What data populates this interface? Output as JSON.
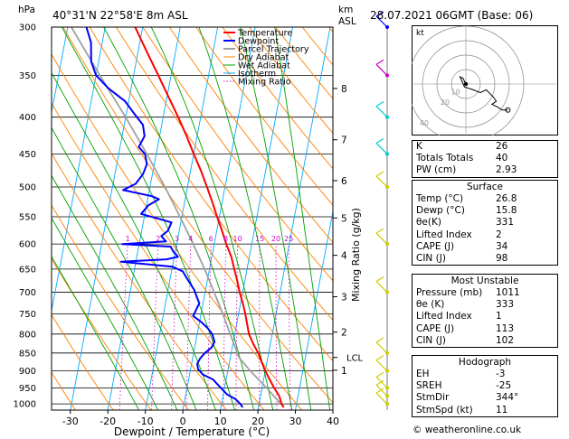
{
  "header": {
    "hpa_label": "hPa",
    "location": "40°31'N  22°58'E  8m  ASL",
    "km_label": "km",
    "asl_label": "ASL",
    "datetime": "28.07.2021  06GMT  (Base: 06)"
  },
  "colors": {
    "temperature": "#ff0000",
    "dewpoint": "#0000ff",
    "parcel": "#a0a0a0",
    "dry_adiabat": "#ff8000",
    "wet_adiabat": "#00a000",
    "isotherm": "#00aaff",
    "mixing_ratio": "#cc00cc"
  },
  "chart_data": {
    "type": "line",
    "xlabel": "Dewpoint / Temperature (°C)",
    "ylabel": "Mixing Ratio (g/kg)",
    "xlim": [
      -35,
      40
    ],
    "ylim": [
      1000,
      300
    ],
    "pressure_levels": [
      "300",
      "350",
      "400",
      "450",
      "500",
      "550",
      "600",
      "650",
      "700",
      "750",
      "800",
      "850",
      "900",
      "950",
      "1000"
    ],
    "temp_ticks": [
      "-30",
      "-20",
      "-10",
      "0",
      "10",
      "20",
      "30",
      "40"
    ],
    "km_ticks": [
      {
        "label": "8",
        "p": 365
      },
      {
        "label": "7",
        "p": 430
      },
      {
        "label": "6",
        "p": 490
      },
      {
        "label": "5",
        "p": 552
      },
      {
        "label": "4",
        "p": 622
      },
      {
        "label": "3",
        "p": 710
      },
      {
        "label": "2",
        "p": 795
      },
      {
        "label": "1",
        "p": 898
      }
    ],
    "lcl": {
      "label": "LCL",
      "p": 862
    },
    "mixing_ratio_labels": [
      "1",
      "2",
      "3",
      "4",
      "6",
      "8",
      "10",
      "15",
      "20",
      "25"
    ],
    "mixing_ratio_values": [
      1,
      2,
      3,
      4,
      6,
      8,
      10,
      15,
      20,
      25
    ],
    "legend": [
      "Temperature",
      "Dewpoint",
      "Parcel Trajectory",
      "Dry Adiabat",
      "Wet Adiabat",
      "Isotherm",
      "Mixing Ratio"
    ],
    "legend_position": "top-right",
    "series": [
      {
        "name": "Temperature",
        "points": [
          [
            1011,
            26.8
          ],
          [
            1000,
            26.0
          ],
          [
            975,
            25.0
          ],
          [
            950,
            23.2
          ],
          [
            925,
            21.6
          ],
          [
            900,
            20.0
          ],
          [
            875,
            18.6
          ],
          [
            850,
            17.2
          ],
          [
            825,
            15.4
          ],
          [
            800,
            13.8
          ],
          [
            775,
            12.8
          ],
          [
            750,
            11.8
          ],
          [
            725,
            10.6
          ],
          [
            700,
            9.2
          ],
          [
            675,
            8.0
          ],
          [
            650,
            6.6
          ],
          [
            625,
            5.2
          ],
          [
            600,
            3.2
          ],
          [
            575,
            1.4
          ],
          [
            550,
            -0.6
          ],
          [
            525,
            -2.6
          ],
          [
            500,
            -4.8
          ],
          [
            475,
            -7.2
          ],
          [
            450,
            -10.0
          ],
          [
            425,
            -12.8
          ],
          [
            400,
            -16.0
          ],
          [
            375,
            -19.6
          ],
          [
            350,
            -23.4
          ],
          [
            325,
            -27.6
          ],
          [
            300,
            -32.0
          ]
        ]
      },
      {
        "name": "Dewpoint",
        "points": [
          [
            1011,
            15.8
          ],
          [
            1000,
            15.0
          ],
          [
            985,
            13.5
          ],
          [
            970,
            11.0
          ],
          [
            955,
            9.5
          ],
          [
            940,
            8.0
          ],
          [
            925,
            6.5
          ],
          [
            910,
            3.5
          ],
          [
            895,
            2.0
          ],
          [
            880,
            1.5
          ],
          [
            865,
            2.0
          ],
          [
            850,
            3.0
          ],
          [
            835,
            4.5
          ],
          [
            820,
            5.0
          ],
          [
            800,
            4.0
          ],
          [
            785,
            2.5
          ],
          [
            770,
            0.5
          ],
          [
            755,
            -2.0
          ],
          [
            740,
            -1.5
          ],
          [
            725,
            -1.0
          ],
          [
            710,
            -2.0
          ],
          [
            695,
            -3.0
          ],
          [
            680,
            -4.5
          ],
          [
            665,
            -6.0
          ],
          [
            655,
            -7.0
          ],
          [
            645,
            -10.0
          ],
          [
            635,
            -24.0
          ],
          [
            630,
            -12.0
          ],
          [
            625,
            -9.0
          ],
          [
            615,
            -10.5
          ],
          [
            605,
            -11.5
          ],
          [
            600,
            -24.5
          ],
          [
            595,
            -13.0
          ],
          [
            585,
            -14.5
          ],
          [
            575,
            -13.0
          ],
          [
            560,
            -12.5
          ],
          [
            545,
            -21.0
          ],
          [
            530,
            -19.5
          ],
          [
            520,
            -17.0
          ],
          [
            515,
            -19.0
          ],
          [
            505,
            -27.0
          ],
          [
            495,
            -24.0
          ],
          [
            480,
            -22.5
          ],
          [
            465,
            -22.0
          ],
          [
            450,
            -23.0
          ],
          [
            440,
            -25.0
          ],
          [
            425,
            -24.0
          ],
          [
            410,
            -25.0
          ],
          [
            395,
            -28.0
          ],
          [
            380,
            -31.0
          ],
          [
            365,
            -36.0
          ],
          [
            350,
            -40.0
          ],
          [
            335,
            -42.0
          ],
          [
            315,
            -43.0
          ],
          [
            300,
            -45.0
          ]
        ]
      },
      {
        "name": "Parcel Trajectory",
        "points": [
          [
            1011,
            26.8
          ],
          [
            950,
            21.2
          ],
          [
            900,
            16.0
          ],
          [
            862,
            12.3
          ],
          [
            850,
            11.6
          ],
          [
            800,
            8.8
          ],
          [
            750,
            5.8
          ],
          [
            700,
            2.4
          ],
          [
            650,
            -1.3
          ],
          [
            600,
            -5.6
          ],
          [
            550,
            -10.5
          ],
          [
            500,
            -16.0
          ],
          [
            450,
            -22.5
          ],
          [
            400,
            -30.0
          ],
          [
            350,
            -39.0
          ],
          [
            300,
            -49.0
          ]
        ]
      }
    ]
  },
  "hodograph": {
    "label": "kt",
    "ring_labels": [
      "10",
      "20",
      "40"
    ],
    "trace": [
      [
        0,
        0
      ],
      [
        -2,
        4
      ],
      [
        -4,
        5
      ],
      [
        -1,
        -2
      ],
      [
        5,
        -4
      ],
      [
        10,
        -6
      ],
      [
        14,
        -4
      ],
      [
        17,
        -7
      ],
      [
        19,
        -9
      ],
      [
        21,
        -12
      ],
      [
        18,
        -14
      ],
      [
        22,
        -16
      ],
      [
        25,
        -18
      ],
      [
        29,
        -18
      ]
    ],
    "storm_motion": [
      [
        29,
        -18
      ]
    ]
  },
  "wind_barbs": [
    {
      "p": 1000,
      "color": "#cccc00"
    },
    {
      "p": 975,
      "color": "#cccc00"
    },
    {
      "p": 950,
      "color": "#cccc00"
    },
    {
      "p": 900,
      "color": "#cccc00"
    },
    {
      "p": 850,
      "color": "#cccc00"
    },
    {
      "p": 700,
      "color": "#cccc00"
    },
    {
      "p": 600,
      "color": "#cccc00"
    },
    {
      "p": 500,
      "color": "#cccc00"
    },
    {
      "p": 450,
      "color": "#00cccc"
    },
    {
      "p": 400,
      "color": "#00cccc"
    },
    {
      "p": 350,
      "color": "#cc00cc"
    },
    {
      "p": 300,
      "color": "#0000ff"
    }
  ],
  "indices": {
    "rows": [
      {
        "label": "K",
        "value": "26"
      },
      {
        "label": "Totals Totals",
        "value": "40"
      },
      {
        "label": "PW (cm)",
        "value": "2.93"
      }
    ]
  },
  "surface": {
    "title": "Surface",
    "rows": [
      {
        "label": "Temp (°C)",
        "value": "26.8"
      },
      {
        "label": "Dewp (°C)",
        "value": "15.8"
      },
      {
        "label": "θe(K)",
        "value": "331"
      },
      {
        "label": "Lifted Index",
        "value": "2"
      },
      {
        "label": "CAPE (J)",
        "value": "34"
      },
      {
        "label": "CIN (J)",
        "value": "98"
      }
    ]
  },
  "most_unstable": {
    "title": "Most Unstable",
    "rows": [
      {
        "label": "Pressure (mb)",
        "value": "1011"
      },
      {
        "label": "θe (K)",
        "value": "333"
      },
      {
        "label": "Lifted Index",
        "value": "1"
      },
      {
        "label": "CAPE (J)",
        "value": "113"
      },
      {
        "label": "CIN (J)",
        "value": "102"
      }
    ]
  },
  "hodograph_table": {
    "title": "Hodograph",
    "rows": [
      {
        "label": "EH",
        "value": "-3"
      },
      {
        "label": "SREH",
        "value": "-25"
      },
      {
        "label": "StmDir",
        "value": "344°"
      },
      {
        "label": "StmSpd (kt)",
        "value": "11"
      }
    ]
  },
  "footer": {
    "text": "© weatheronline.co.uk"
  }
}
